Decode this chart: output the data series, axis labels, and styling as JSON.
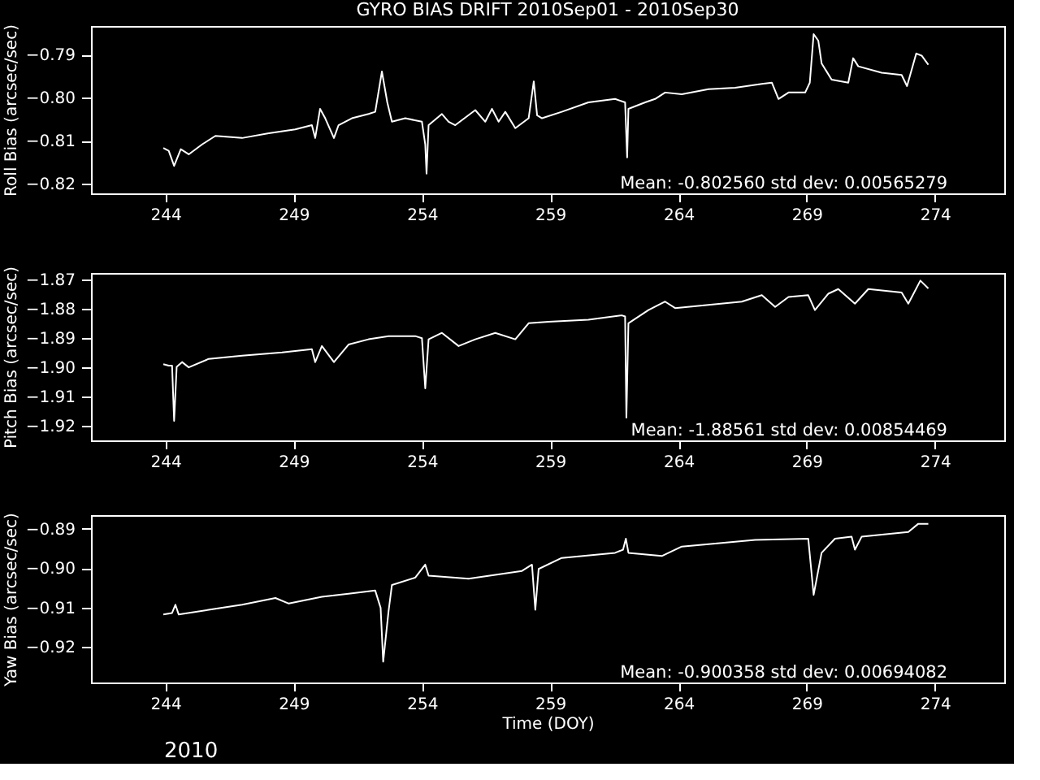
{
  "chart_data": [
    {
      "type": "line",
      "title": "GYRO BIAS DRIFT 2010Sep01 - 2010Sep30",
      "ylabel": "Roll Bias (arcsec/sec)",
      "xlim": [
        241.1,
        276.7
      ],
      "xticks": [
        244,
        249,
        254,
        259,
        264,
        269,
        274
      ],
      "ylim": [
        -0.8223,
        -0.7833
      ],
      "yticks": [
        -0.82,
        -0.81,
        {
          "value": -0.8,
          "label": "−0.80"
        },
        -0.79
      ],
      "grid": false,
      "annotations": [
        "Mean: -0.802560 std dev: 0.00565279"
      ],
      "series": [
        {
          "color": "#ffffff",
          "x": [
            243.92,
            244.13,
            244.34,
            244.6,
            244.91,
            245.43,
            245.95,
            246.99,
            248.03,
            249.06,
            249.71,
            249.84,
            250.03,
            250.23,
            250.57,
            250.75,
            251.27,
            251.92,
            252.18,
            252.44,
            252.65,
            252.83,
            253.35,
            254.0,
            254.13,
            254.18,
            254.26,
            254.78,
            255.04,
            255.3,
            256.08,
            256.47,
            256.73,
            256.99,
            257.25,
            257.64,
            258.16,
            258.36,
            258.49,
            258.68,
            259.45,
            260.49,
            261.53,
            261.92,
            262.0,
            262.05,
            262.7,
            263.09,
            263.48,
            264.13,
            265.17,
            266.21,
            267.25,
            267.64,
            267.9,
            268.29,
            268.94,
            269.12,
            269.27,
            269.45,
            269.58,
            269.97,
            270.62,
            270.81,
            271.01,
            271.92,
            272.7,
            272.91,
            273.27,
            273.48,
            273.74
          ],
          "values": [
            -0.8117,
            -0.8124,
            -0.8159,
            -0.812,
            -0.8132,
            -0.8109,
            -0.8089,
            -0.8094,
            -0.8083,
            -0.8074,
            -0.8064,
            -0.8094,
            -0.8026,
            -0.8048,
            -0.8094,
            -0.8064,
            -0.8048,
            -0.8038,
            -0.8033,
            -0.7939,
            -0.8011,
            -0.8056,
            -0.8048,
            -0.8056,
            -0.8109,
            -0.8177,
            -0.8064,
            -0.8038,
            -0.8056,
            -0.8064,
            -0.8029,
            -0.8056,
            -0.8026,
            -0.8056,
            -0.8033,
            -0.8071,
            -0.8048,
            -0.7962,
            -0.8041,
            -0.8048,
            -0.8033,
            -0.8011,
            -0.8003,
            -0.8011,
            -0.8139,
            -0.8026,
            -0.8011,
            -0.8003,
            -0.7988,
            -0.7992,
            -0.798,
            -0.7977,
            -0.7968,
            -0.7965,
            -0.8003,
            -0.7988,
            -0.7988,
            -0.7965,
            -0.7852,
            -0.7867,
            -0.792,
            -0.7958,
            -0.7965,
            -0.7908,
            -0.7927,
            -0.7942,
            -0.7947,
            -0.7973,
            -0.7897,
            -0.7902,
            -0.7923
          ]
        }
      ]
    },
    {
      "type": "line",
      "ylabel": "Pitch Bias (arcsec/sec)",
      "xlim": [
        241.1,
        276.7
      ],
      "xticks": [
        244,
        249,
        254,
        259,
        264,
        269,
        274
      ],
      "ylim": [
        -1.9251,
        -1.8678
      ],
      "yticks": [
        -1.92,
        -1.91,
        {
          "value": -1.9,
          "label": "−1.90"
        },
        -1.89,
        -1.88,
        -1.87
      ],
      "grid": false,
      "annotations": [
        "Mean: -1.88561 std dev: 0.00854469"
      ],
      "series": [
        {
          "color": "#ffffff",
          "x": [
            243.92,
            244.13,
            244.26,
            244.34,
            244.44,
            244.65,
            244.91,
            245.69,
            246.99,
            248.55,
            249.71,
            249.84,
            250.1,
            250.57,
            251.14,
            251.92,
            252.7,
            253.74,
            254.0,
            254.13,
            254.26,
            254.78,
            255.43,
            256.08,
            256.86,
            257.64,
            258.16,
            258.94,
            260.49,
            261.79,
            261.92,
            261.97,
            262.05,
            262.83,
            263.48,
            263.87,
            265.17,
            266.47,
            267.25,
            267.77,
            268.29,
            269.06,
            269.32,
            269.84,
            270.23,
            270.88,
            271.4,
            272.7,
            272.96,
            273.43,
            273.74
          ],
          "values": [
            -1.899,
            -1.8995,
            -1.8995,
            -1.9184,
            -1.8999,
            -1.8983,
            -1.9001,
            -1.8972,
            -1.8961,
            -1.895,
            -1.8939,
            -1.8983,
            -1.8928,
            -1.8983,
            -1.8923,
            -1.8905,
            -1.8894,
            -1.8894,
            -1.8901,
            -1.9073,
            -1.8905,
            -1.8883,
            -1.8928,
            -1.8905,
            -1.8883,
            -1.8905,
            -1.885,
            -1.8845,
            -1.8838,
            -1.8823,
            -1.8827,
            -1.9173,
            -1.885,
            -1.8805,
            -1.8776,
            -1.8798,
            -1.8787,
            -1.8776,
            -1.8754,
            -1.8794,
            -1.876,
            -1.8754,
            -1.8805,
            -1.8749,
            -1.8733,
            -1.8783,
            -1.8733,
            -1.8745,
            -1.8783,
            -1.8704,
            -1.8731
          ]
        }
      ]
    },
    {
      "type": "line",
      "xlabel": "Time (DOY)",
      "ylabel": "Yaw Bias (arcsec/sec)",
      "xlim": [
        241.1,
        276.7
      ],
      "xticks": [
        244,
        249,
        254,
        259,
        264,
        269,
        274
      ],
      "ylim": [
        -0.9291,
        -0.8865
      ],
      "yticks": [
        -0.92,
        -0.91,
        {
          "value": -0.9,
          "label": "−0.90"
        },
        -0.89
      ],
      "grid": false,
      "annotations": [
        "Mean: -0.900358 std dev: 0.00694082",
        "2010"
      ],
      "series": [
        {
          "color": "#ffffff",
          "x": [
            243.92,
            244.26,
            244.39,
            244.52,
            245.69,
            246.99,
            248.29,
            248.81,
            250.1,
            251.14,
            252.18,
            252.39,
            252.49,
            252.7,
            252.83,
            253.74,
            254.13,
            254.26,
            255.82,
            257.9,
            258.29,
            258.42,
            258.55,
            259.45,
            261.53,
            261.84,
            261.95,
            262.05,
            263.35,
            264.13,
            265.69,
            266.99,
            269.06,
            269.27,
            269.58,
            270.1,
            270.75,
            270.88,
            271.14,
            272.96,
            273.35,
            273.74
          ],
          "values": [
            -0.9118,
            -0.9114,
            -0.9093,
            -0.9118,
            -0.9106,
            -0.9093,
            -0.9076,
            -0.909,
            -0.9073,
            -0.9065,
            -0.9057,
            -0.9101,
            -0.9238,
            -0.9109,
            -0.9043,
            -0.9024,
            -0.8991,
            -0.9019,
            -0.9027,
            -0.9007,
            -0.8991,
            -0.9106,
            -0.9002,
            -0.8974,
            -0.8961,
            -0.8953,
            -0.8925,
            -0.8961,
            -0.8969,
            -0.8945,
            -0.8936,
            -0.8928,
            -0.8925,
            -0.9068,
            -0.8961,
            -0.8925,
            -0.892,
            -0.8953,
            -0.892,
            -0.8908,
            -0.8887,
            -0.8887
          ]
        }
      ]
    }
  ]
}
